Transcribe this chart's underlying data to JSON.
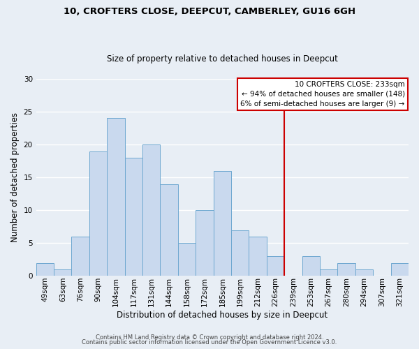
{
  "title_line1": "10, CROFTERS CLOSE, DEEPCUT, CAMBERLEY, GU16 6GH",
  "title_line2": "Size of property relative to detached houses in Deepcut",
  "xlabel": "Distribution of detached houses by size in Deepcut",
  "ylabel": "Number of detached properties",
  "footer_line1": "Contains HM Land Registry data © Crown copyright and database right 2024.",
  "footer_line2": "Contains public sector information licensed under the Open Government Licence v3.0.",
  "categories": [
    "49sqm",
    "63sqm",
    "76sqm",
    "90sqm",
    "104sqm",
    "117sqm",
    "131sqm",
    "144sqm",
    "158sqm",
    "172sqm",
    "185sqm",
    "199sqm",
    "212sqm",
    "226sqm",
    "239sqm",
    "253sqm",
    "267sqm",
    "280sqm",
    "294sqm",
    "307sqm",
    "321sqm"
  ],
  "values": [
    2,
    1,
    6,
    19,
    24,
    18,
    20,
    14,
    5,
    10,
    16,
    7,
    6,
    3,
    0,
    3,
    1,
    2,
    1,
    0,
    2
  ],
  "bar_color": "#c9d9ee",
  "bar_edge_color": "#6ea8d0",
  "vline_color": "#cc0000",
  "vline_x": 13.5,
  "annotation_title": "10 CROFTERS CLOSE: 233sqm",
  "annotation_line1": "← 94% of detached houses are smaller (148)",
  "annotation_line2": "6% of semi-detached houses are larger (9) →",
  "annotation_box_facecolor": "#ffffff",
  "annotation_box_edgecolor": "#cc0000",
  "ylim": [
    0,
    30
  ],
  "yticks": [
    0,
    5,
    10,
    15,
    20,
    25,
    30
  ],
  "background_color": "#e8eef5",
  "grid_color": "#ffffff",
  "title1_fontsize": 9.5,
  "title2_fontsize": 8.5,
  "xlabel_fontsize": 8.5,
  "ylabel_fontsize": 8.5,
  "tick_fontsize": 7.5,
  "footer_fontsize": 6.0
}
